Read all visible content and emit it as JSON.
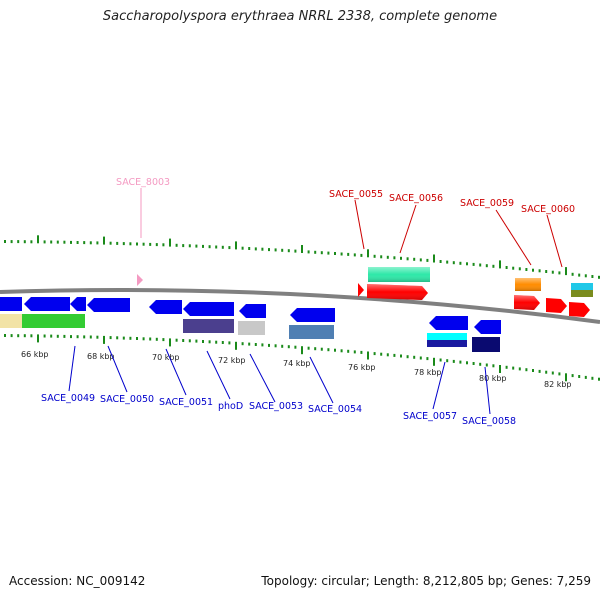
{
  "title": "Saccharopolyspora erythraea NRRL 2338, complete genome",
  "footer": {
    "accession": "Accession: NC_009142",
    "summary": "Topology: circular; Length: 8,212,805 bp; Genes: 7,259"
  },
  "scale_labels": [
    "66 kbp",
    "68 kbp",
    "70 kbp",
    "72 kbp",
    "74 kbp",
    "76 kbp",
    "78 kbp",
    "80 kbp",
    "82 kbp"
  ],
  "gene_labels": {
    "top": [
      "SACE_8003",
      "SACE_0055",
      "SACE_0056",
      "SACE_0059",
      "SACE_0060"
    ],
    "bottom": [
      "SACE_0049",
      "SACE_0050",
      "SACE_0051",
      "phoD",
      "SACE_0053",
      "SACE_0054",
      "SACE_0057",
      "SACE_0058"
    ]
  },
  "colors": {
    "axis": "#808080",
    "ticks": "#1a8a1a",
    "forward_label": "#cc0000",
    "reverse_label": "#0000cc",
    "pseudo_label": "#e890b8",
    "cds_forward": "#ff0000",
    "cds_reverse": "#0000ee"
  }
}
